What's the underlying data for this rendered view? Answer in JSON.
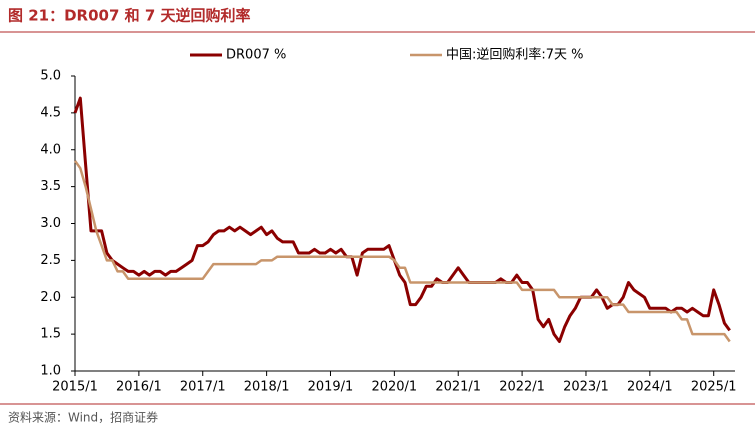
{
  "chart_data": {
    "type": "line",
    "title": "图 21：DR007 和 7 天逆回购利率",
    "source": "资料来源：Wind，招商证券",
    "x": [
      "2015/1",
      "2015/2",
      "2015/3",
      "2015/4",
      "2015/5",
      "2015/6",
      "2015/7",
      "2015/8",
      "2015/9",
      "2015/10",
      "2015/11",
      "2015/12",
      "2016/1",
      "2016/2",
      "2016/3",
      "2016/4",
      "2016/5",
      "2016/6",
      "2016/7",
      "2016/8",
      "2016/9",
      "2016/10",
      "2016/11",
      "2016/12",
      "2017/1",
      "2017/2",
      "2017/3",
      "2017/4",
      "2017/5",
      "2017/6",
      "2017/7",
      "2017/8",
      "2017/9",
      "2017/10",
      "2017/11",
      "2017/12",
      "2018/1",
      "2018/2",
      "2018/3",
      "2018/4",
      "2018/5",
      "2018/6",
      "2018/7",
      "2018/8",
      "2018/9",
      "2018/10",
      "2018/11",
      "2018/12",
      "2019/1",
      "2019/2",
      "2019/3",
      "2019/4",
      "2019/5",
      "2019/6",
      "2019/7",
      "2019/8",
      "2019/9",
      "2019/10",
      "2019/11",
      "2019/12",
      "2020/1",
      "2020/2",
      "2020/3",
      "2020/4",
      "2020/5",
      "2020/6",
      "2020/7",
      "2020/8",
      "2020/9",
      "2020/10",
      "2020/11",
      "2020/12",
      "2021/1",
      "2021/2",
      "2021/3",
      "2021/4",
      "2021/5",
      "2021/6",
      "2021/7",
      "2021/8",
      "2021/9",
      "2021/10",
      "2021/11",
      "2021/12",
      "2022/1",
      "2022/2",
      "2022/3",
      "2022/4",
      "2022/5",
      "2022/6",
      "2022/7",
      "2022/8",
      "2022/9",
      "2022/10",
      "2022/11",
      "2022/12",
      "2023/1",
      "2023/2",
      "2023/3",
      "2023/4",
      "2023/5",
      "2023/6",
      "2023/7",
      "2023/8",
      "2023/9",
      "2023/10",
      "2023/11",
      "2023/12",
      "2024/1",
      "2024/2",
      "2024/3",
      "2024/4",
      "2024/5",
      "2024/6",
      "2024/7",
      "2024/8",
      "2024/9",
      "2024/10",
      "2024/11",
      "2024/12",
      "2025/1",
      "2025/2",
      "2025/3",
      "2025/4"
    ],
    "series": [
      {
        "name": "DR007 %",
        "color": "#8b0000",
        "width": 3,
        "values": [
          4.5,
          4.7,
          3.8,
          2.9,
          2.9,
          2.9,
          2.6,
          2.5,
          2.45,
          2.4,
          2.35,
          2.35,
          2.3,
          2.35,
          2.3,
          2.35,
          2.35,
          2.3,
          2.35,
          2.35,
          2.4,
          2.45,
          2.5,
          2.7,
          2.7,
          2.75,
          2.85,
          2.9,
          2.9,
          2.95,
          2.9,
          2.95,
          2.9,
          2.85,
          2.9,
          2.95,
          2.85,
          2.9,
          2.8,
          2.75,
          2.75,
          2.75,
          2.6,
          2.6,
          2.6,
          2.65,
          2.6,
          2.6,
          2.65,
          2.6,
          2.65,
          2.55,
          2.55,
          2.3,
          2.6,
          2.65,
          2.65,
          2.65,
          2.65,
          2.7,
          2.5,
          2.3,
          2.2,
          1.9,
          1.9,
          2.0,
          2.15,
          2.15,
          2.25,
          2.2,
          2.2,
          2.3,
          2.4,
          2.3,
          2.2,
          2.2,
          2.2,
          2.2,
          2.2,
          2.2,
          2.25,
          2.2,
          2.2,
          2.3,
          2.2,
          2.2,
          2.1,
          1.7,
          1.6,
          1.7,
          1.5,
          1.4,
          1.6,
          1.75,
          1.85,
          2.0,
          2.0,
          2.0,
          2.1,
          2.0,
          1.85,
          1.9,
          1.9,
          2.0,
          2.2,
          2.1,
          2.05,
          2.0,
          1.85,
          1.85,
          1.85,
          1.85,
          1.8,
          1.85,
          1.85,
          1.8,
          1.85,
          1.8,
          1.75,
          1.75,
          2.1,
          1.9,
          1.65,
          1.55
        ]
      },
      {
        "name": "中国:逆回购利率:7天 %",
        "color": "#c8956b",
        "width": 2.5,
        "values": [
          3.85,
          3.75,
          3.5,
          3.2,
          2.9,
          2.7,
          2.5,
          2.5,
          2.35,
          2.35,
          2.25,
          2.25,
          2.25,
          2.25,
          2.25,
          2.25,
          2.25,
          2.25,
          2.25,
          2.25,
          2.25,
          2.25,
          2.25,
          2.25,
          2.25,
          2.35,
          2.45,
          2.45,
          2.45,
          2.45,
          2.45,
          2.45,
          2.45,
          2.45,
          2.45,
          2.5,
          2.5,
          2.5,
          2.55,
          2.55,
          2.55,
          2.55,
          2.55,
          2.55,
          2.55,
          2.55,
          2.55,
          2.55,
          2.55,
          2.55,
          2.55,
          2.55,
          2.55,
          2.55,
          2.55,
          2.55,
          2.55,
          2.55,
          2.55,
          2.55,
          2.5,
          2.4,
          2.4,
          2.2,
          2.2,
          2.2,
          2.2,
          2.2,
          2.2,
          2.2,
          2.2,
          2.2,
          2.2,
          2.2,
          2.2,
          2.2,
          2.2,
          2.2,
          2.2,
          2.2,
          2.2,
          2.2,
          2.2,
          2.2,
          2.1,
          2.1,
          2.1,
          2.1,
          2.1,
          2.1,
          2.1,
          2.0,
          2.0,
          2.0,
          2.0,
          2.0,
          2.0,
          2.0,
          2.0,
          2.0,
          2.0,
          1.9,
          1.9,
          1.9,
          1.8,
          1.8,
          1.8,
          1.8,
          1.8,
          1.8,
          1.8,
          1.8,
          1.8,
          1.8,
          1.7,
          1.7,
          1.5,
          1.5,
          1.5,
          1.5,
          1.5,
          1.5,
          1.5,
          1.4
        ]
      }
    ],
    "xlim": [
      "2015/1",
      "2025/5"
    ],
    "xticks": [
      "2015/1",
      "2016/1",
      "2017/1",
      "2018/1",
      "2019/1",
      "2020/1",
      "2021/1",
      "2022/1",
      "2023/1",
      "2024/1",
      "2025/1"
    ],
    "ylim": [
      1,
      5
    ],
    "yticks": [
      {
        "value": 1,
        "label": "1.0"
      },
      {
        "value": 1.5,
        "label": "1.5"
      },
      {
        "value": 2,
        "label": "2.0"
      },
      {
        "value": 2.5,
        "label": "2.5"
      },
      {
        "value": 3,
        "label": "3.0"
      },
      {
        "value": 3.5,
        "label": "3.5"
      },
      {
        "value": 4,
        "label": "4.0"
      },
      {
        "value": 4.5,
        "label": "4.5"
      },
      {
        "value": 5,
        "label": "5.0"
      }
    ],
    "grid": false,
    "legend": "top"
  }
}
